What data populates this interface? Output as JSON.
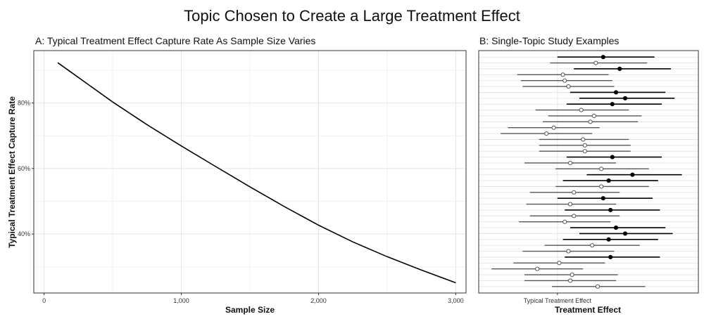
{
  "figure_title": "Topic Chosen to Create a Large Treatment Effect",
  "chart_data": [
    {
      "type": "line",
      "title": "A: Typical Treatment Effect Capture Rate As Sample Size Varies",
      "xlabel": "Sample Size",
      "ylabel": "Typical Treatment Effect Capture Rate",
      "xlim": [
        -75,
        3075
      ],
      "ylim": [
        22,
        96
      ],
      "x_ticks": [
        0,
        1000,
        2000,
        3000
      ],
      "x_tick_labels": [
        "0",
        "1,000",
        "2,000",
        "3,000"
      ],
      "y_ticks": [
        40,
        60,
        80
      ],
      "y_tick_labels": [
        "40%",
        "60%",
        "80%"
      ],
      "grid": true,
      "series": [
        {
          "x": [
            100,
            250,
            500,
            750,
            1000,
            1250,
            1500,
            1750,
            2000,
            2250,
            2500,
            2750,
            3000
          ],
          "y": [
            92.3,
            87.8,
            80.3,
            73.4,
            66.9,
            60.6,
            54.4,
            48.4,
            42.7,
            37.6,
            33.1,
            29.0,
            25.1
          ]
        }
      ],
      "color": "#000000"
    },
    {
      "type": "scatter",
      "title": "B: Single-Topic Study Examples",
      "xlabel": "Treatment Effect",
      "x_ticks": [
        0
      ],
      "x_tick_labels": [
        "Typical Treatment Effect"
      ],
      "xlim": [
        -2.15,
        3.85
      ],
      "grid": true,
      "legend": "none",
      "intervals": [
        {
          "center": 1.25,
          "low": 0.0,
          "high": 2.65,
          "filled": true
        },
        {
          "center": 1.05,
          "low": -0.2,
          "high": 2.45,
          "filled": false
        },
        {
          "center": 1.7,
          "low": 0.45,
          "high": 3.1,
          "filled": true
        },
        {
          "center": 0.15,
          "low": -1.1,
          "high": 1.4,
          "filled": false
        },
        {
          "center": 0.2,
          "low": -1.0,
          "high": 1.5,
          "filled": false
        },
        {
          "center": 0.3,
          "low": -0.95,
          "high": 1.55,
          "filled": false
        },
        {
          "center": 1.6,
          "low": 0.35,
          "high": 2.95,
          "filled": true
        },
        {
          "center": 1.85,
          "low": 0.6,
          "high": 3.2,
          "filled": true
        },
        {
          "center": 1.5,
          "low": 0.25,
          "high": 2.85,
          "filled": true
        },
        {
          "center": 0.65,
          "low": -0.6,
          "high": 1.95,
          "filled": false
        },
        {
          "center": 1.0,
          "low": -0.25,
          "high": 2.3,
          "filled": false
        },
        {
          "center": 0.9,
          "low": -0.4,
          "high": 2.2,
          "filled": false
        },
        {
          "center": -0.1,
          "low": -1.35,
          "high": 1.15,
          "filled": false
        },
        {
          "center": -0.3,
          "low": -1.55,
          "high": 0.95,
          "filled": false
        },
        {
          "center": 0.7,
          "low": -0.5,
          "high": 1.95,
          "filled": false
        },
        {
          "center": 0.75,
          "low": -0.5,
          "high": 2.0,
          "filled": false
        },
        {
          "center": 0.75,
          "low": -0.5,
          "high": 2.0,
          "filled": false
        },
        {
          "center": 1.5,
          "low": 0.25,
          "high": 2.85,
          "filled": true
        },
        {
          "center": 0.35,
          "low": -0.9,
          "high": 1.6,
          "filled": false
        },
        {
          "center": 1.2,
          "low": -0.05,
          "high": 2.5,
          "filled": false
        },
        {
          "center": 2.05,
          "low": 0.8,
          "high": 3.4,
          "filled": true
        },
        {
          "center": 1.4,
          "low": 0.15,
          "high": 2.75,
          "filled": true
        },
        {
          "center": 1.2,
          "low": -0.05,
          "high": 2.5,
          "filled": false
        },
        {
          "center": 0.45,
          "low": -0.75,
          "high": 1.7,
          "filled": false
        },
        {
          "center": 1.25,
          "low": 0.0,
          "high": 2.6,
          "filled": true
        },
        {
          "center": 0.35,
          "low": -0.85,
          "high": 1.6,
          "filled": false
        },
        {
          "center": 1.45,
          "low": 0.2,
          "high": 2.8,
          "filled": true
        },
        {
          "center": 0.45,
          "low": -0.75,
          "high": 1.7,
          "filled": false
        },
        {
          "center": 0.2,
          "low": -1.05,
          "high": 1.45,
          "filled": false
        },
        {
          "center": 1.6,
          "low": 0.35,
          "high": 2.95,
          "filled": true
        },
        {
          "center": 1.85,
          "low": 0.6,
          "high": 3.15,
          "filled": true
        },
        {
          "center": 1.4,
          "low": 0.15,
          "high": 2.75,
          "filled": true
        },
        {
          "center": 0.95,
          "low": -0.35,
          "high": 2.25,
          "filled": false
        },
        {
          "center": 0.3,
          "low": -0.95,
          "high": 1.55,
          "filled": false
        },
        {
          "center": 1.45,
          "low": 0.2,
          "high": 2.8,
          "filled": true
        },
        {
          "center": 0.05,
          "low": -1.2,
          "high": 1.3,
          "filled": false
        },
        {
          "center": -0.55,
          "low": -1.8,
          "high": 0.7,
          "filled": false
        },
        {
          "center": 0.4,
          "low": -0.9,
          "high": 1.65,
          "filled": false
        },
        {
          "center": 0.35,
          "low": -0.9,
          "high": 1.6,
          "filled": false
        },
        {
          "center": 1.1,
          "low": -0.15,
          "high": 2.4,
          "filled": false
        }
      ]
    }
  ]
}
